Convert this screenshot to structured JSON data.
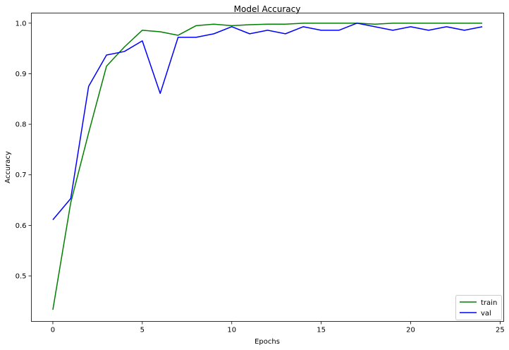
{
  "chart_data": {
    "type": "line",
    "title": "Model Accuracy",
    "xlabel": "Epochs",
    "ylabel": "Accuracy",
    "xlim": [
      -1.2,
      25.2
    ],
    "ylim": [
      0.41,
      1.02
    ],
    "xticks": [
      0,
      5,
      10,
      15,
      20,
      25
    ],
    "yticks": [
      0.5,
      0.6,
      0.7,
      0.8,
      0.9,
      1.0
    ],
    "xtick_labels": [
      "0",
      "5",
      "10",
      "15",
      "20",
      "25"
    ],
    "ytick_labels": [
      "0.5",
      "0.6",
      "0.7",
      "0.8",
      "0.9",
      "1.0"
    ],
    "grid": false,
    "legend_position": "lower-right",
    "x": [
      0,
      1,
      2,
      3,
      4,
      5,
      6,
      7,
      8,
      9,
      10,
      11,
      12,
      13,
      14,
      15,
      16,
      17,
      18,
      19,
      20,
      21,
      22,
      23,
      24
    ],
    "series": [
      {
        "name": "train",
        "color": "#008000",
        "values": [
          0.433,
          0.645,
          0.783,
          0.915,
          0.953,
          0.986,
          0.983,
          0.976,
          0.995,
          0.998,
          0.995,
          0.997,
          0.998,
          0.998,
          1.0,
          1.0,
          1.0,
          1.0,
          0.998,
          1.0,
          1.0,
          1.0,
          1.0,
          1.0,
          1.0
        ]
      },
      {
        "name": "val",
        "color": "#0000ff",
        "values": [
          0.611,
          0.653,
          0.875,
          0.937,
          0.944,
          0.965,
          0.861,
          0.972,
          0.972,
          0.979,
          0.993,
          0.979,
          0.986,
          0.979,
          0.993,
          0.986,
          0.986,
          1.0,
          0.993,
          0.986,
          0.993,
          0.986,
          0.993,
          0.986,
          0.993
        ]
      }
    ]
  }
}
